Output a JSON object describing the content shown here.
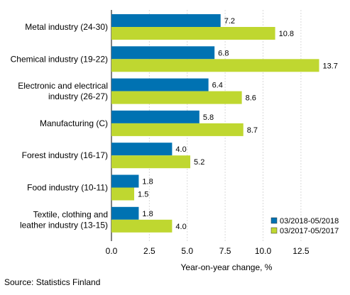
{
  "chart_data": {
    "type": "bar",
    "orientation": "horizontal",
    "categories": [
      [
        "Metal industry (24-30)"
      ],
      [
        "Chemical industry (19-22)"
      ],
      [
        "Electronic and electrical",
        "industry (26-27)"
      ],
      [
        "Manufacturing (C)"
      ],
      [
        "Forest industry (16-17)"
      ],
      [
        "Food industry (10-11)"
      ],
      [
        "Textile, clothing and",
        "leather industry (13-15)"
      ]
    ],
    "series": [
      {
        "name": "03/2018-05/2018",
        "color": "#0072b2",
        "values": [
          7.2,
          6.8,
          6.4,
          5.8,
          4.0,
          1.8,
          1.8
        ]
      },
      {
        "name": "03/2017-05/2017",
        "color": "#bfd730",
        "values": [
          10.8,
          13.7,
          8.6,
          8.7,
          5.2,
          1.5,
          4.0
        ]
      }
    ],
    "xlabel": "Year-on-year change, %",
    "xlim": [
      0,
      15
    ],
    "xticks": [
      0.0,
      2.5,
      5.0,
      7.5,
      10.0,
      12.5
    ],
    "grid": "vertical",
    "legend": "bottom-right"
  },
  "source": "Source: Statistics Finland"
}
